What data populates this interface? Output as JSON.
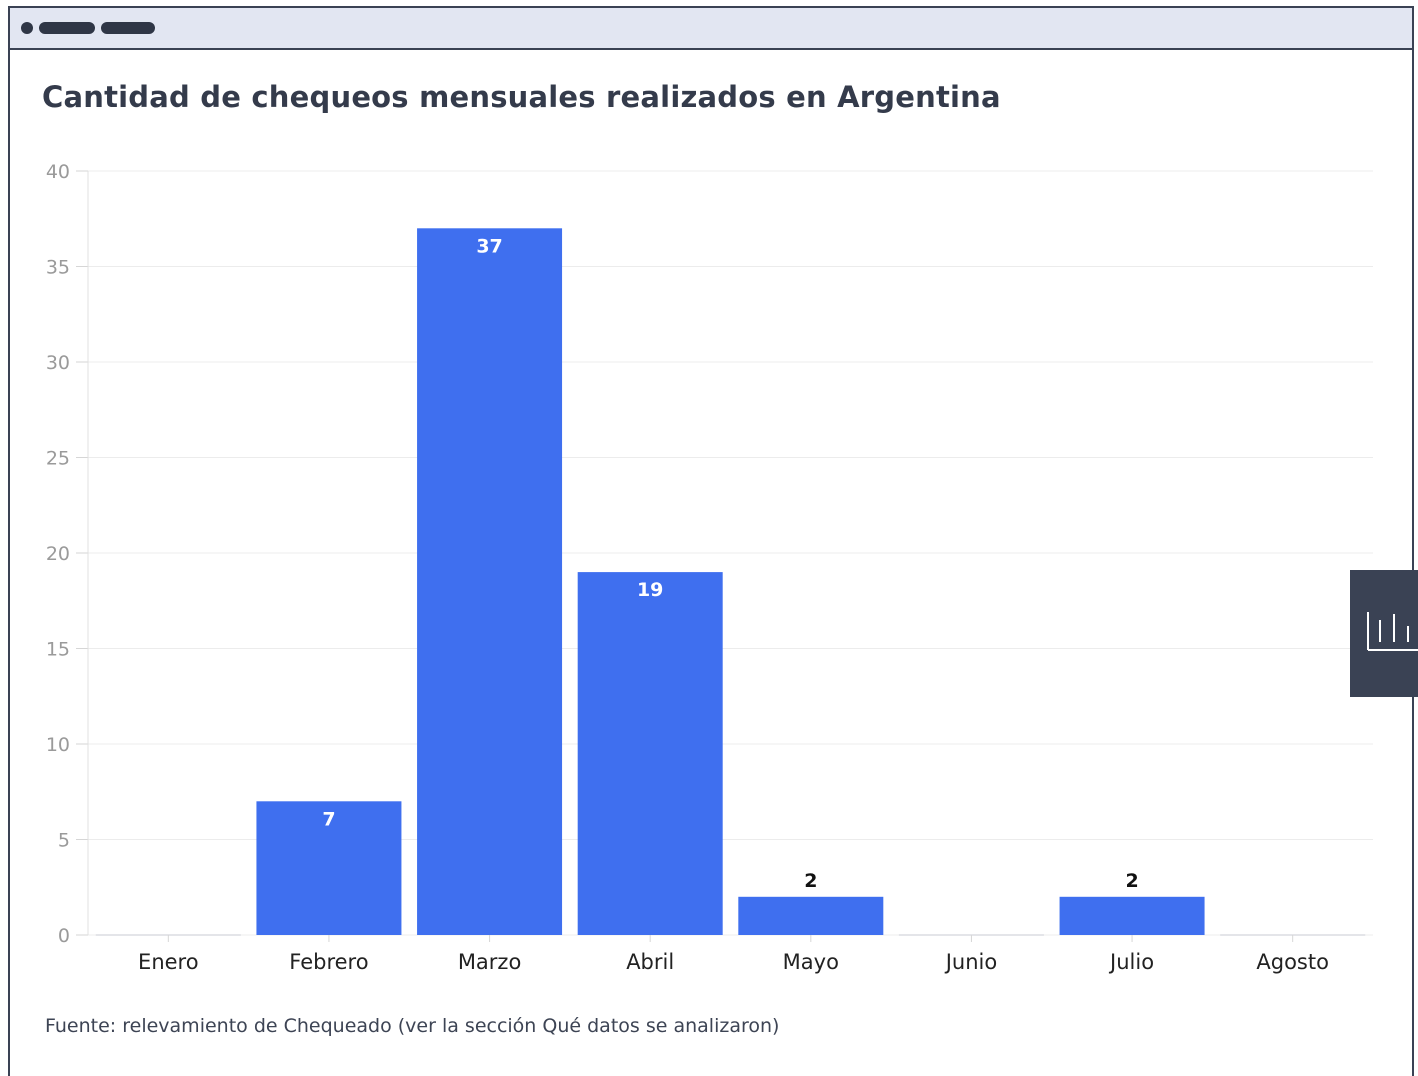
{
  "chart_data": {
    "type": "bar",
    "title": "Cantidad de chequeos mensuales realizados en Argentina",
    "categories": [
      "Enero",
      "Febrero",
      "Marzo",
      "Abril",
      "Mayo",
      "Junio",
      "Julio",
      "Agosto"
    ],
    "values": [
      0,
      7,
      37,
      19,
      2,
      0,
      2,
      0
    ],
    "data_labels": [
      "",
      "7",
      "37",
      "19",
      "2",
      "",
      "2",
      ""
    ],
    "y_ticks": [
      "0",
      "5",
      "10",
      "15",
      "20",
      "25",
      "30",
      "35",
      "40"
    ],
    "ylim": [
      0,
      40
    ],
    "xlabel": "",
    "ylabel": "",
    "grid": true,
    "bar_color": "#3f6fef"
  },
  "source": "Fuente: relevamiento de Chequeado (ver la sección Qué datos se analizaron)",
  "toolbar": {
    "chart_toggle_icon": "bar-chart-icon"
  }
}
